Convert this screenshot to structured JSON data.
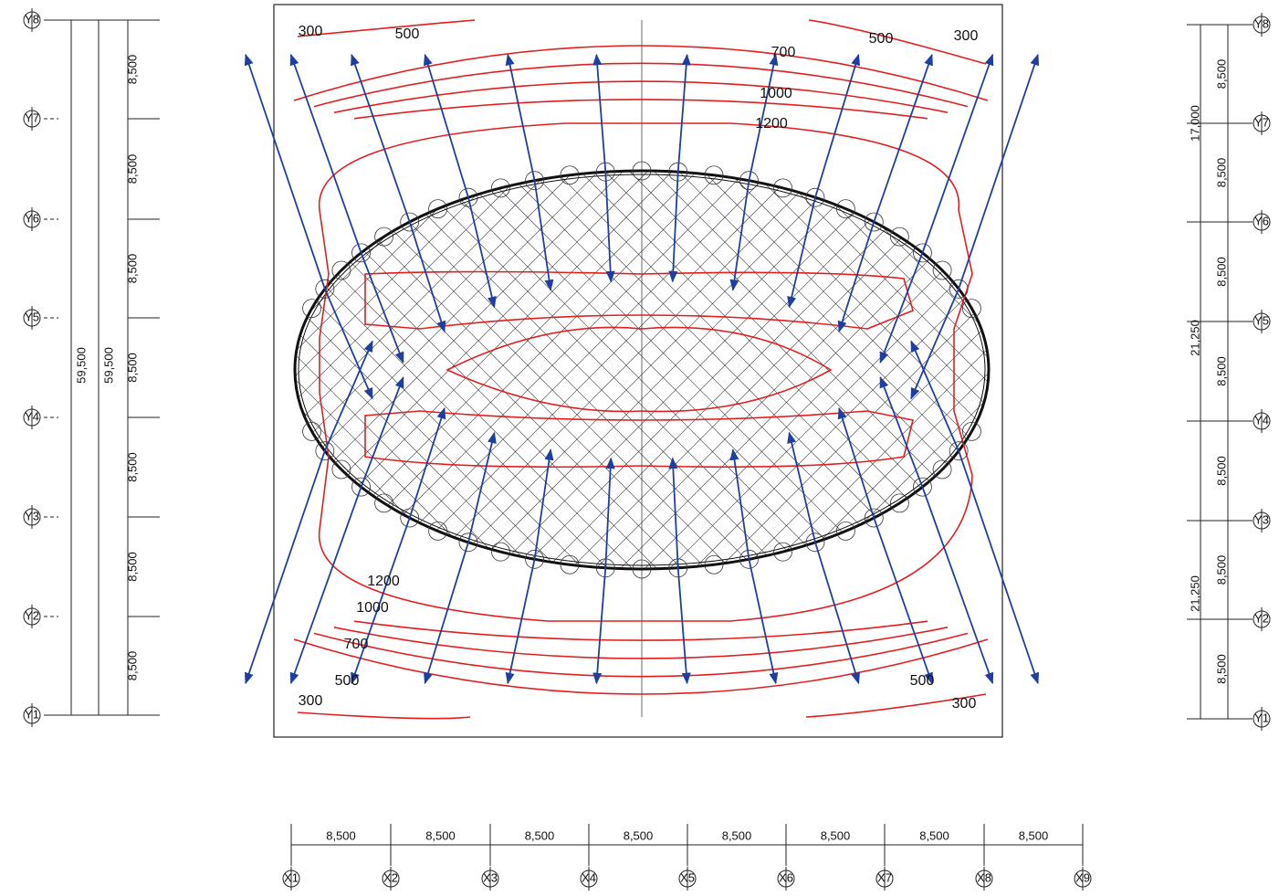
{
  "left_axis": {
    "bubbles": [
      "Y8",
      "Y7",
      "Y6",
      "Y5",
      "Y4",
      "Y3",
      "Y2",
      "Y1"
    ],
    "dimensions": [
      "8,500",
      "8,500",
      "8,500",
      "8,500",
      "8,500",
      "8,500",
      "8,500"
    ],
    "totals": [
      "59,500",
      "59,500"
    ]
  },
  "right_axis": {
    "bubbles": [
      "Y8",
      "Y7",
      "Y6",
      "Y5",
      "Y4",
      "Y3",
      "Y2",
      "Y1"
    ],
    "dimensions": [
      "8,500",
      "8,500",
      "8,500",
      "8,500",
      "8,500",
      "8,500",
      "8,500"
    ],
    "totals": [
      "17,000",
      "21,250",
      "21,250"
    ]
  },
  "bottom_axis": {
    "bubbles": [
      "X1",
      "X2",
      "X3",
      "X4",
      "X5",
      "X6",
      "X7",
      "X8",
      "X9"
    ],
    "dimensions": [
      "8,500",
      "8,500",
      "8,500",
      "8,500",
      "8,500",
      "8,500",
      "8,500",
      "8,500"
    ]
  },
  "contour_labels": [
    "300",
    "500",
    "700",
    "1000",
    "1200",
    "500",
    "300",
    "1200",
    "1000",
    "700",
    "500",
    "300",
    "500",
    "300"
  ]
}
